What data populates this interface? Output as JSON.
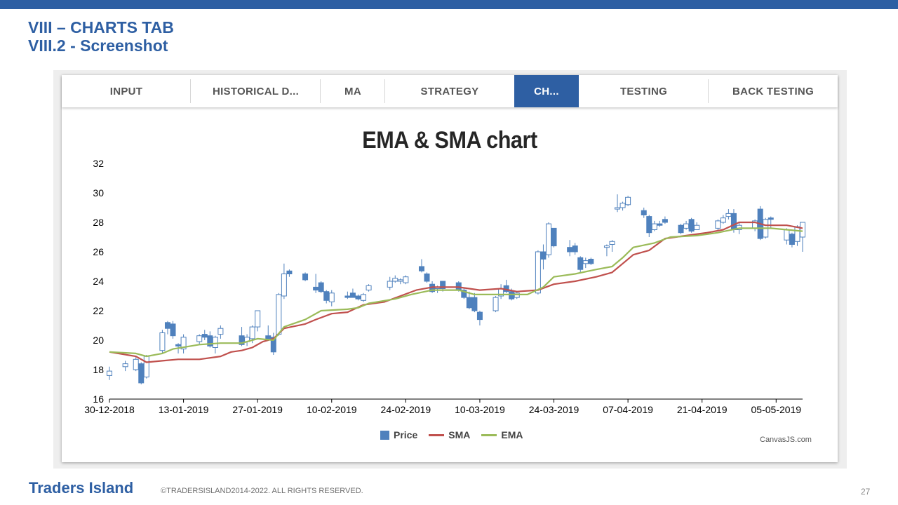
{
  "header": {
    "line1": "VIII – CHARTS TAB",
    "line2": "VIII.2 - Screenshot"
  },
  "tabs": [
    {
      "label": "INPUT",
      "active": false
    },
    {
      "label": "HISTORICAL D...",
      "active": false
    },
    {
      "label": "MA",
      "active": false
    },
    {
      "label": "STRATEGY",
      "active": false
    },
    {
      "label": "CH...",
      "active": true
    },
    {
      "label": "TESTING",
      "active": false
    },
    {
      "label": "BACK TESTING",
      "active": false
    }
  ],
  "colors": {
    "brand": "#2e5fa3",
    "price": "#4f81bd",
    "sma": "#c0504d",
    "ema": "#9bbb59"
  },
  "legend": {
    "price": "Price",
    "sma": "SMA",
    "ema": "EMA"
  },
  "credit": "CanvasJS.com",
  "chart_data": {
    "type": "candlestick",
    "title": "EMA & SMA chart",
    "ylim": [
      16,
      32
    ],
    "yticks": [
      "16",
      "18",
      "20",
      "22",
      "24",
      "26",
      "28",
      "30",
      "32"
    ],
    "xlim": [
      "2018-12-30",
      "2019-05-10"
    ],
    "xticks": [
      "30-12-2018",
      "13-01-2019",
      "27-01-2019",
      "10-02-2019",
      "24-02-2019",
      "10-03-2019",
      "24-03-2019",
      "07-04-2019",
      "21-04-2019",
      "05-05-2019"
    ],
    "grid": false,
    "legend_position": "bottom",
    "series": [
      {
        "name": "Price",
        "ohlc": [
          [
            "2018-12-30",
            17.6,
            18.2,
            17.3,
            17.9
          ],
          [
            "2019-01-02",
            18.2,
            18.6,
            17.9,
            18.4
          ],
          [
            "2019-01-04",
            18.0,
            18.9,
            17.9,
            18.7
          ],
          [
            "2019-01-05",
            18.4,
            18.5,
            17.0,
            17.1
          ],
          [
            "2019-01-06",
            17.5,
            19.0,
            17.4,
            18.9
          ],
          [
            "2019-01-09",
            19.3,
            20.7,
            19.1,
            20.5
          ],
          [
            "2019-01-10",
            21.2,
            21.3,
            20.4,
            20.8
          ],
          [
            "2019-01-11",
            21.1,
            21.3,
            20.1,
            20.3
          ],
          [
            "2019-01-12",
            19.7,
            19.8,
            19.1,
            19.6
          ],
          [
            "2019-01-13",
            19.4,
            20.4,
            19.1,
            20.2
          ],
          [
            "2019-01-16",
            19.9,
            20.4,
            19.7,
            20.3
          ],
          [
            "2019-01-17",
            20.4,
            20.7,
            20.0,
            20.2
          ],
          [
            "2019-01-18",
            20.3,
            20.6,
            19.5,
            19.6
          ],
          [
            "2019-01-19",
            19.5,
            20.3,
            19.1,
            20.2
          ],
          [
            "2019-01-20",
            20.4,
            21.0,
            20.1,
            20.8
          ],
          [
            "2019-01-24",
            20.3,
            20.9,
            19.6,
            19.7
          ],
          [
            "2019-01-25",
            19.9,
            20.4,
            19.6,
            20.2
          ],
          [
            "2019-01-26",
            20.1,
            21.0,
            19.8,
            20.9
          ],
          [
            "2019-01-27",
            20.9,
            22.0,
            20.6,
            22.0
          ],
          [
            "2019-01-29",
            20.3,
            21.0,
            20.0,
            20.1
          ],
          [
            "2019-01-30",
            20.2,
            20.5,
            19.0,
            19.2
          ],
          [
            "2019-01-31",
            20.4,
            23.2,
            20.3,
            23.1
          ],
          [
            "2019-02-01",
            23.0,
            25.2,
            22.8,
            24.5
          ],
          [
            "2019-02-02",
            24.7,
            24.8,
            24.3,
            24.5
          ],
          [
            "2019-02-05",
            24.5,
            24.6,
            24.0,
            24.1
          ],
          [
            "2019-02-07",
            23.6,
            24.5,
            23.2,
            23.4
          ],
          [
            "2019-02-08",
            23.9,
            24.0,
            23.2,
            23.3
          ],
          [
            "2019-02-09",
            23.3,
            23.4,
            22.5,
            22.7
          ],
          [
            "2019-02-10",
            22.6,
            23.4,
            22.3,
            23.2
          ],
          [
            "2019-02-13",
            23.0,
            23.3,
            22.8,
            22.9
          ],
          [
            "2019-02-14",
            23.2,
            23.5,
            22.9,
            22.9
          ],
          [
            "2019-02-15",
            23.0,
            23.1,
            22.7,
            22.8
          ],
          [
            "2019-02-16",
            22.7,
            23.2,
            22.6,
            23.1
          ],
          [
            "2019-02-17",
            23.4,
            23.8,
            23.3,
            23.7
          ],
          [
            "2019-02-21",
            23.6,
            24.3,
            23.4,
            24.0
          ],
          [
            "2019-02-22",
            24.0,
            24.4,
            23.9,
            24.2
          ],
          [
            "2019-02-23",
            24.0,
            24.2,
            23.8,
            24.1
          ],
          [
            "2019-02-24",
            23.9,
            24.4,
            23.8,
            24.3
          ],
          [
            "2019-02-27",
            25.0,
            25.5,
            24.6,
            24.7
          ],
          [
            "2019-02-28",
            24.5,
            24.6,
            23.9,
            24.0
          ],
          [
            "2019-03-01",
            23.8,
            24.0,
            23.2,
            23.3
          ],
          [
            "2019-03-02",
            23.5,
            23.7,
            23.2,
            23.6
          ],
          [
            "2019-03-03",
            24.0,
            24.0,
            23.3,
            23.5
          ],
          [
            "2019-03-06",
            23.9,
            24.0,
            23.3,
            23.4
          ],
          [
            "2019-03-07",
            23.4,
            23.5,
            22.8,
            22.9
          ],
          [
            "2019-03-08",
            22.9,
            23.3,
            22.1,
            22.2
          ],
          [
            "2019-03-09",
            22.9,
            23.2,
            21.9,
            22.0
          ],
          [
            "2019-03-10",
            21.9,
            22.0,
            21.0,
            21.4
          ],
          [
            "2019-03-13",
            22.0,
            23.0,
            21.9,
            22.9
          ],
          [
            "2019-03-14",
            23.0,
            23.8,
            22.8,
            23.5
          ],
          [
            "2019-03-15",
            23.7,
            24.1,
            23.2,
            23.3
          ],
          [
            "2019-03-16",
            23.3,
            23.5,
            22.7,
            22.8
          ],
          [
            "2019-03-17",
            22.9,
            23.3,
            22.8,
            23.2
          ],
          [
            "2019-03-21",
            23.2,
            26.1,
            23.1,
            26.0
          ],
          [
            "2019-03-22",
            26.0,
            26.5,
            24.8,
            25.5
          ],
          [
            "2019-03-23",
            25.8,
            28.0,
            25.6,
            27.9
          ],
          [
            "2019-03-24",
            27.6,
            27.6,
            26.3,
            26.4
          ],
          [
            "2019-03-27",
            26.3,
            26.8,
            25.7,
            26.0
          ],
          [
            "2019-03-28",
            26.4,
            26.6,
            25.8,
            26.0
          ],
          [
            "2019-03-29",
            25.6,
            25.7,
            24.6,
            24.8
          ],
          [
            "2019-03-30",
            25.2,
            25.6,
            24.9,
            25.4
          ],
          [
            "2019-03-31",
            25.5,
            25.6,
            25.1,
            25.2
          ],
          [
            "2019-04-03",
            26.3,
            26.5,
            25.7,
            26.4
          ],
          [
            "2019-04-04",
            26.5,
            26.8,
            26.0,
            26.7
          ],
          [
            "2019-04-05",
            28.9,
            29.9,
            28.7,
            29.0
          ],
          [
            "2019-04-06",
            29.0,
            29.4,
            28.8,
            29.3
          ],
          [
            "2019-04-07",
            29.2,
            29.8,
            29.1,
            29.7
          ],
          [
            "2019-04-10",
            28.8,
            29.0,
            28.3,
            28.5
          ],
          [
            "2019-04-11",
            28.4,
            28.5,
            27.0,
            27.3
          ],
          [
            "2019-04-12",
            27.5,
            28.1,
            27.4,
            27.9
          ],
          [
            "2019-04-13",
            27.9,
            28.1,
            27.7,
            27.8
          ],
          [
            "2019-04-14",
            28.2,
            28.4,
            27.9,
            28.0
          ],
          [
            "2019-04-17",
            27.8,
            27.9,
            27.2,
            27.3
          ],
          [
            "2019-04-18",
            27.6,
            28.1,
            27.5,
            27.9
          ],
          [
            "2019-04-19",
            28.2,
            28.3,
            27.3,
            27.4
          ],
          [
            "2019-04-20",
            27.5,
            28.0,
            27.5,
            27.8
          ],
          [
            "2019-04-24",
            27.6,
            28.2,
            27.4,
            28.1
          ],
          [
            "2019-04-25",
            28.0,
            28.5,
            27.9,
            28.3
          ],
          [
            "2019-04-26",
            28.4,
            28.9,
            28.2,
            28.6
          ],
          [
            "2019-04-27",
            28.6,
            28.9,
            27.3,
            27.5
          ],
          [
            "2019-04-28",
            27.5,
            28.0,
            27.2,
            27.8
          ],
          [
            "2019-05-01",
            27.6,
            28.2,
            27.4,
            28.1
          ],
          [
            "2019-05-02",
            28.9,
            29.1,
            26.8,
            26.9
          ],
          [
            "2019-05-03",
            27.0,
            28.3,
            26.9,
            28.2
          ],
          [
            "2019-05-04",
            28.3,
            28.4,
            27.6,
            28.2
          ],
          [
            "2019-05-07",
            26.8,
            27.6,
            26.5,
            27.5
          ],
          [
            "2019-05-08",
            27.2,
            27.3,
            26.3,
            26.5
          ],
          [
            "2019-05-09",
            26.7,
            27.8,
            26.4,
            27.7
          ],
          [
            "2019-05-10",
            27.0,
            28.0,
            26.0,
            28.0
          ]
        ]
      },
      {
        "name": "SMA",
        "points": [
          [
            "2018-12-30",
            19.2
          ],
          [
            "2019-01-04",
            18.9
          ],
          [
            "2019-01-06",
            18.5
          ],
          [
            "2019-01-09",
            18.6
          ],
          [
            "2019-01-12",
            18.7
          ],
          [
            "2019-01-16",
            18.7
          ],
          [
            "2019-01-20",
            18.9
          ],
          [
            "2019-01-22",
            19.2
          ],
          [
            "2019-01-24",
            19.3
          ],
          [
            "2019-01-26",
            19.5
          ],
          [
            "2019-01-28",
            19.9
          ],
          [
            "2019-01-30",
            20.1
          ],
          [
            "2019-02-01",
            20.8
          ],
          [
            "2019-02-05",
            21.1
          ],
          [
            "2019-02-07",
            21.4
          ],
          [
            "2019-02-10",
            21.8
          ],
          [
            "2019-02-13",
            21.9
          ],
          [
            "2019-02-16",
            22.4
          ],
          [
            "2019-02-20",
            22.6
          ],
          [
            "2019-02-23",
            23.0
          ],
          [
            "2019-02-26",
            23.4
          ],
          [
            "2019-03-01",
            23.6
          ],
          [
            "2019-03-06",
            23.6
          ],
          [
            "2019-03-10",
            23.4
          ],
          [
            "2019-03-14",
            23.5
          ],
          [
            "2019-03-17",
            23.3
          ],
          [
            "2019-03-21",
            23.4
          ],
          [
            "2019-03-24",
            23.8
          ],
          [
            "2019-03-28",
            24.0
          ],
          [
            "2019-04-01",
            24.3
          ],
          [
            "2019-04-04",
            24.6
          ],
          [
            "2019-04-06",
            25.2
          ],
          [
            "2019-04-08",
            25.8
          ],
          [
            "2019-04-11",
            26.1
          ],
          [
            "2019-04-14",
            26.9
          ],
          [
            "2019-04-18",
            27.1
          ],
          [
            "2019-04-22",
            27.3
          ],
          [
            "2019-04-25",
            27.5
          ],
          [
            "2019-04-28",
            28.0
          ],
          [
            "2019-05-01",
            28.0
          ],
          [
            "2019-05-03",
            27.8
          ],
          [
            "2019-05-07",
            27.8
          ],
          [
            "2019-05-10",
            27.6
          ]
        ]
      },
      {
        "name": "EMA",
        "points": [
          [
            "2018-12-30",
            19.2
          ],
          [
            "2019-01-04",
            19.1
          ],
          [
            "2019-01-06",
            18.9
          ],
          [
            "2019-01-09",
            19.1
          ],
          [
            "2019-01-11",
            19.4
          ],
          [
            "2019-01-16",
            19.7
          ],
          [
            "2019-01-20",
            19.8
          ],
          [
            "2019-01-24",
            19.8
          ],
          [
            "2019-01-27",
            20.1
          ],
          [
            "2019-01-30",
            20.0
          ],
          [
            "2019-02-01",
            20.9
          ],
          [
            "2019-02-05",
            21.4
          ],
          [
            "2019-02-08",
            22.0
          ],
          [
            "2019-02-13",
            22.1
          ],
          [
            "2019-02-15",
            22.2
          ],
          [
            "2019-02-17",
            22.5
          ],
          [
            "2019-02-22",
            22.8
          ],
          [
            "2019-02-25",
            23.1
          ],
          [
            "2019-03-01",
            23.4
          ],
          [
            "2019-03-06",
            23.4
          ],
          [
            "2019-03-09",
            23.1
          ],
          [
            "2019-03-14",
            23.1
          ],
          [
            "2019-03-19",
            23.1
          ],
          [
            "2019-03-22",
            23.6
          ],
          [
            "2019-03-24",
            24.3
          ],
          [
            "2019-03-28",
            24.5
          ],
          [
            "2019-04-01",
            24.8
          ],
          [
            "2019-04-04",
            25.0
          ],
          [
            "2019-04-06",
            25.6
          ],
          [
            "2019-04-08",
            26.3
          ],
          [
            "2019-04-12",
            26.6
          ],
          [
            "2019-04-15",
            27.0
          ],
          [
            "2019-04-20",
            27.1
          ],
          [
            "2019-04-24",
            27.3
          ],
          [
            "2019-04-28",
            27.6
          ],
          [
            "2019-05-01",
            27.6
          ],
          [
            "2019-05-04",
            27.6
          ],
          [
            "2019-05-07",
            27.5
          ],
          [
            "2019-05-10",
            27.4
          ]
        ]
      }
    ]
  },
  "footer": {
    "brand": "Traders Island",
    "copyright": "©TRADERSISLAND2014-2022. ALL RIGHTS RESERVED.",
    "page_number": "27"
  }
}
